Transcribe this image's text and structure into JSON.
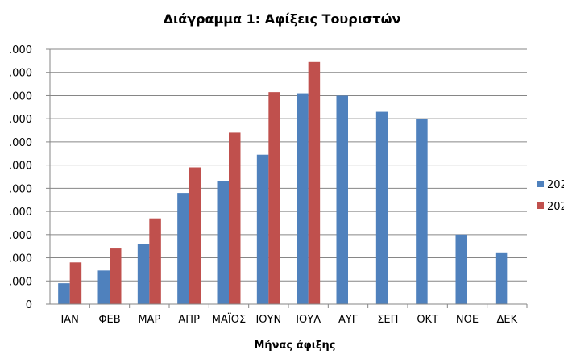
{
  "chart_data": {
    "type": "bar",
    "title": "Διάγραμμα 1: Αφίξεις Τουριστών",
    "xlabel": "Μήνας άφιξης",
    "ylabel": "",
    "categories": [
      "ΙΑΝ",
      "ΦΕΒ",
      "ΜΑΡ",
      "ΑΠΡ",
      "ΜΑΪΟΣ",
      "ΙΟΥΝ",
      "ΙΟΥΛ",
      "ΑΥΓ",
      "ΣΕΠ",
      "ΟΚΤ",
      "ΝΟΕ",
      "ΔΕΚ"
    ],
    "ylim": [
      0,
      11000
    ],
    "yticks": [
      0,
      1000,
      2000,
      3000,
      4000,
      5000,
      6000,
      7000,
      8000,
      9000,
      10000,
      11000
    ],
    "ytick_labels": [
      "0",
      ".000",
      ".000",
      ".000",
      ".000",
      ".000",
      ".000",
      ".000",
      ".000",
      ".000",
      ".000",
      ".000"
    ],
    "grid": true,
    "legend_position": "right",
    "series": [
      {
        "name": "202",
        "color": "#4F81BD",
        "values": [
          900,
          1450,
          2600,
          4800,
          5300,
          6450,
          9100,
          9000,
          8300,
          8000,
          3000,
          2200
        ]
      },
      {
        "name": "202",
        "color": "#C0504D",
        "values": [
          1800,
          2400,
          3700,
          5900,
          7400,
          9150,
          10450,
          null,
          null,
          null,
          null,
          null
        ]
      }
    ]
  }
}
